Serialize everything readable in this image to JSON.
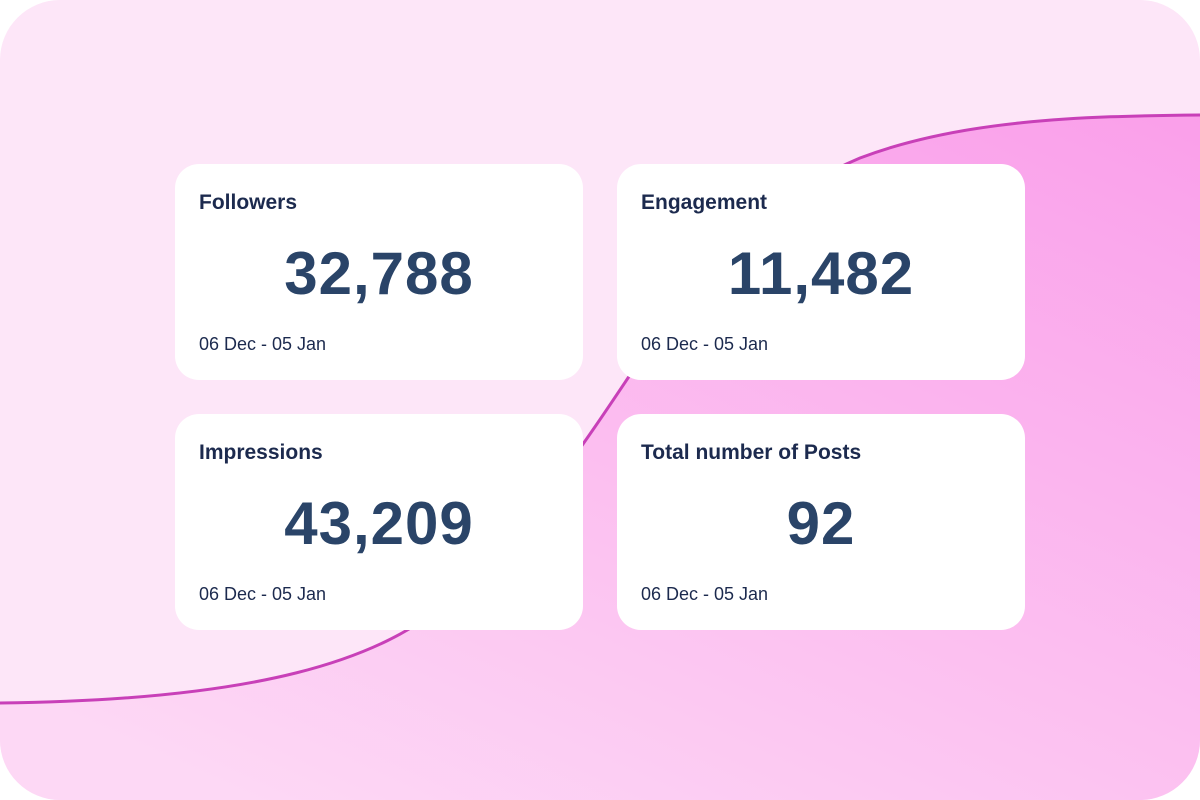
{
  "colors": {
    "background": "#fde6f8",
    "accent_fill": "#fba6ec",
    "curve_stroke": "#c840b8",
    "card": "#ffffff",
    "title_text": "#1c2a4e",
    "value_text": "#2a4468"
  },
  "cards": [
    {
      "title": "Followers",
      "value": "32,788",
      "range": "06 Dec - 05 Jan"
    },
    {
      "title": "Engagement",
      "value": "11,482",
      "range": "06 Dec - 05 Jan"
    },
    {
      "title": "Impressions",
      "value": "43,209",
      "range": "06 Dec - 05 Jan"
    },
    {
      "title": "Total number of Posts",
      "value": "92",
      "range": "06 Dec - 05 Jan"
    }
  ]
}
